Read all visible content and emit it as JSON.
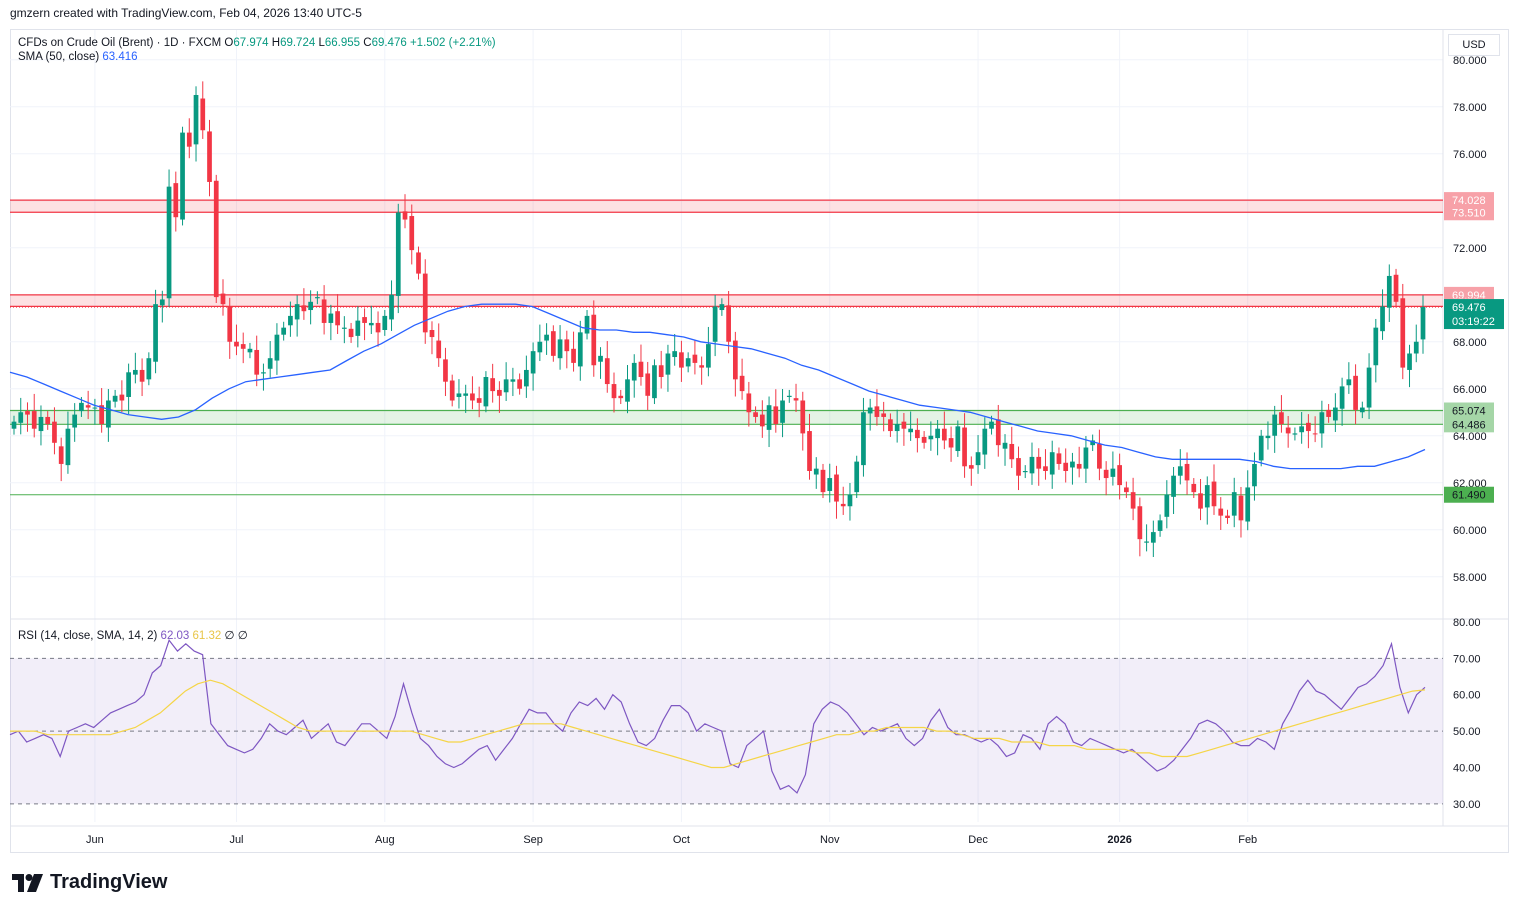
{
  "header": {
    "text": "gmzern created with TradingView.com, Feb 04, 2026 13:40 UTC-5"
  },
  "legend": {
    "symbol": "CFDs on Crude Oil (Brent) · 1D · FXCM",
    "open_label": "O",
    "open": "67.974",
    "high_label": "H",
    "high": "69.724",
    "low_label": "L",
    "low": "66.955",
    "close_label": "C",
    "close": "69.476",
    "change": "+1.502 (+2.21%)",
    "sma_label": "SMA (50, close)",
    "sma_value": "63.416",
    "rsi_label": "RSI (14, close, SMA, 14, 2)",
    "rsi_value": "62.03",
    "rsi_sma_value": "61.32",
    "rsi_extra": "∅ ∅"
  },
  "currency": "USD",
  "logo": {
    "text": "TradingView",
    "icon": "tradingview-logo-icon"
  },
  "colors": {
    "up": "#089981",
    "down": "#f23645",
    "sma": "#2962ff",
    "rsi": "#7e57c2",
    "rsi_sma": "#f5d547",
    "resistance": "#f23645",
    "support": "#4caf50"
  },
  "chart_data": {
    "type": "candlestick",
    "title": "CFDs on Crude Oil (Brent) · 1D · FXCM",
    "x_labels": [
      "Jun",
      "Jul",
      "Aug",
      "Sep",
      "Oct",
      "Nov",
      "Dec",
      "2026",
      "Feb"
    ],
    "y_ticks": [
      "58.000",
      "60.000",
      "62.000",
      "64.000",
      "66.000",
      "68.000",
      "70.000",
      "72.000",
      "74.000",
      "76.000",
      "78.000",
      "80.000"
    ],
    "ylim": [
      56.5,
      80.5
    ],
    "current_price": "69.476",
    "countdown": "03:19:22",
    "zones": [
      {
        "type": "resistance",
        "top": 74.028,
        "bottom": 73.51,
        "top_label": "74.028",
        "bottom_label": "73.510"
      },
      {
        "type": "resistance",
        "top": 69.994,
        "bottom": 69.504,
        "top_label": "69.994",
        "bottom_label": "69.504"
      },
      {
        "type": "support",
        "top": 65.074,
        "bottom": 64.486,
        "top_label": "65.074",
        "bottom_label": "64.486"
      }
    ],
    "support_line": {
      "value": 61.49,
      "label": "61.490"
    },
    "closes": [
      64.6,
      65.0,
      64.9,
      64.3,
      64.8,
      64.5,
      63.7,
      62.8,
      64.3,
      64.9,
      65.4,
      65.2,
      65.2,
      64.5,
      65.5,
      65.7,
      65.5,
      66.7,
      66.8,
      66.3,
      67.3,
      69.6,
      69.8,
      74.6,
      73.3,
      76.9,
      76.3,
      78.5,
      77.0,
      74.8,
      69.9,
      69.6,
      68.0,
      67.8,
      67.7,
      67.7,
      66.6,
      66.7,
      67.3,
      68.3,
      68.6,
      69.1,
      69.6,
      69.3,
      69.7,
      69.9,
      68.8,
      69.2,
      68.7,
      68.6,
      68.2,
      68.9,
      68.8,
      68.8,
      68.4,
      69.1,
      70.0,
      73.5,
      73.2,
      71.9,
      70.9,
      68.4,
      68.2,
      67.3,
      66.3,
      65.5,
      65.8,
      65.8,
      65.5,
      65.4,
      66.5,
      65.9,
      65.7,
      66.4,
      66.4,
      66.0,
      66.8,
      67.6,
      68.0,
      68.3,
      67.4,
      68.1,
      67.6,
      67.1,
      68.4,
      69.1,
      67.0,
      67.4,
      66.2,
      65.6,
      65.6,
      66.4,
      67.1,
      66.5,
      65.7,
      67.0,
      66.5,
      67.5,
      67.6,
      66.9,
      67.3,
      67.1,
      66.9,
      67.9,
      69.5,
      69.6,
      68.0,
      66.4,
      65.9,
      65.0,
      64.8,
      64.4,
      65.3,
      64.5,
      65.5,
      65.7,
      65.5,
      64.1,
      62.5,
      62.6,
      61.6,
      62.2,
      61.2,
      61.0,
      61.5,
      62.9,
      65.0,
      65.2,
      64.8,
      64.8,
      64.2,
      64.5,
      64.3,
      64.3,
      63.9,
      63.7,
      64.0,
      64.3,
      63.8,
      63.5,
      64.4,
      62.7,
      62.6,
      63.3,
      64.3,
      64.6,
      63.6,
      63.7,
      63.0,
      62.3,
      62.5,
      63.1,
      62.6,
      62.5,
      63.3,
      62.8,
      62.5,
      62.9,
      62.6,
      63.5,
      63.8,
      62.6,
      62.2,
      62.6,
      61.9,
      61.6,
      60.9,
      59.6,
      59.5,
      59.9,
      60.4,
      61.5,
      62.3,
      62.7,
      62.1,
      61.6,
      60.9,
      61.9,
      61.0,
      60.6,
      60.5,
      61.6,
      60.4,
      61.8,
      62.8,
      64.0,
      64.0,
      64.9,
      64.5,
      64.1,
      64.1,
      64.4,
      64.2,
      64.1,
      65.0,
      64.8,
      65.2,
      66.1,
      66.4,
      65.1,
      65.2,
      66.9,
      68.6,
      69.5,
      70.8,
      69.7,
      66.9,
      67.5,
      68.0,
      69.476
    ],
    "sma50": [
      66.7,
      66.5,
      66.2,
      65.9,
      65.6,
      65.3,
      65.1,
      64.9,
      64.8,
      64.7,
      64.8,
      65.1,
      65.6,
      66.0,
      66.3,
      66.4,
      66.5,
      66.6,
      66.7,
      66.8,
      67.2,
      67.6,
      67.9,
      68.3,
      68.7,
      69.0,
      69.3,
      69.5,
      69.6,
      69.6,
      69.6,
      69.5,
      69.2,
      68.9,
      68.6,
      68.5,
      68.5,
      68.4,
      68.4,
      68.3,
      68.2,
      68.0,
      67.9,
      67.8,
      67.7,
      67.5,
      67.3,
      67.0,
      66.8,
      66.5,
      66.2,
      65.9,
      65.7,
      65.5,
      65.3,
      65.2,
      65.1,
      65.0,
      64.8,
      64.6,
      64.4,
      64.2,
      64.1,
      64.0,
      63.8,
      63.6,
      63.5,
      63.3,
      63.1,
      63.0,
      63.0,
      63.0,
      63.0,
      63.0,
      62.9,
      62.7,
      62.6,
      62.6,
      62.6,
      62.6,
      62.7,
      62.7,
      62.9,
      63.1,
      63.416
    ],
    "rsi": {
      "ylim": [
        25,
        80
      ],
      "ticks": [
        "30.00",
        "40.00",
        "50.00",
        "60.00",
        "70.00",
        "80.00"
      ],
      "upper_band": 70,
      "middle_band": 50,
      "lower_band": 30,
      "values": [
        49,
        50,
        47,
        48,
        49,
        48,
        43,
        50,
        51,
        52,
        51,
        53,
        55,
        56,
        57,
        58,
        60,
        66,
        68,
        75,
        72,
        74,
        72,
        71,
        52,
        49,
        46,
        45,
        44,
        45,
        48,
        52,
        50,
        49,
        51,
        53,
        48,
        50,
        52,
        47,
        46,
        49,
        52,
        52,
        50,
        48,
        54,
        63,
        55,
        48,
        46,
        43,
        41,
        40,
        41,
        43,
        45,
        46,
        42,
        45,
        48,
        52,
        56,
        55,
        55,
        52,
        50,
        55,
        58,
        57,
        59,
        56,
        60,
        58,
        52,
        47,
        46,
        48,
        53,
        57,
        57,
        55,
        50,
        52,
        51,
        50,
        41,
        40,
        46,
        48,
        50,
        39,
        34,
        35,
        33,
        38,
        52,
        56,
        58,
        57,
        55,
        52,
        49,
        51,
        50,
        51,
        52,
        48,
        46,
        48,
        53,
        56,
        51,
        49,
        49,
        48,
        47,
        48,
        46,
        43,
        44,
        49,
        48,
        45,
        52,
        54,
        52,
        47,
        46,
        48,
        47,
        46,
        45,
        44,
        45,
        43,
        41,
        39,
        40,
        42,
        45,
        48,
        52,
        53,
        52,
        50,
        47,
        46,
        46,
        48,
        47,
        45,
        52,
        56,
        61,
        64,
        61,
        60,
        58,
        56,
        59,
        62,
        63,
        65,
        68,
        74,
        62,
        55,
        60,
        62.03
      ],
      "sma_values": [
        50,
        50,
        50,
        49,
        49,
        49,
        49,
        49,
        49,
        50,
        51,
        53,
        55,
        58,
        61,
        63,
        64,
        63,
        61,
        59,
        57,
        55,
        53,
        51,
        50,
        50,
        50,
        50,
        50,
        50,
        50,
        50,
        50,
        49,
        48,
        47,
        47,
        48,
        49,
        50,
        51,
        52,
        52,
        52,
        52,
        51,
        50,
        49,
        48,
        47,
        46,
        45,
        44,
        43,
        42,
        41,
        40,
        40,
        41,
        42,
        43,
        44,
        45,
        46,
        47,
        48,
        49,
        49,
        50,
        50,
        51,
        51,
        51,
        51,
        50,
        50,
        49,
        48,
        48,
        48,
        47,
        47,
        47,
        46,
        46,
        46,
        45,
        45,
        45,
        45,
        44,
        44,
        43,
        43,
        43,
        44,
        45,
        46,
        47,
        48,
        49,
        50,
        51,
        52,
        53,
        54,
        55,
        56,
        57,
        58,
        59,
        60,
        61,
        61.32
      ]
    }
  }
}
